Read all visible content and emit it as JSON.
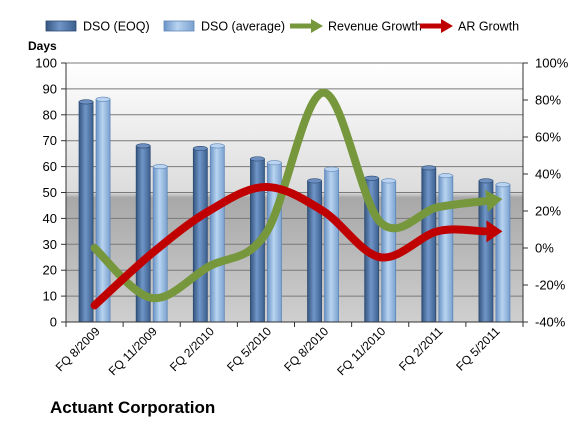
{
  "chart_data": {
    "type": "bar",
    "title": "Actuant Corporation",
    "ylabel": "Days",
    "ylim": [
      0,
      100
    ],
    "yticks": [
      "0",
      "10",
      "20",
      "30",
      "40",
      "50",
      "60",
      "70",
      "80",
      "90",
      "100"
    ],
    "y2lim": [
      -40,
      100
    ],
    "y2ticks": [
      "-40%",
      "-20%",
      "0%",
      "20%",
      "40%",
      "60%",
      "80%",
      "100%"
    ],
    "categories": [
      "FQ 8/2009",
      "FQ 11/2009",
      "FQ 2/2010",
      "FQ 5/2010",
      "FQ 8/2010",
      "FQ 11/2010",
      "FQ 2/2011",
      "FQ 5/2011"
    ],
    "legend_placement": "top",
    "series": [
      {
        "name": "DSO (EOQ)",
        "type": "bar",
        "axis": "left",
        "color": "#4f74a8",
        "values": [
          85,
          68,
          67,
          63,
          54.5,
          55.5,
          59.5,
          54.5
        ]
      },
      {
        "name": "DSO (average)",
        "type": "bar",
        "axis": "left",
        "color": "#8fb5e0",
        "values": [
          86,
          60,
          68,
          61.5,
          59,
          54.5,
          56.5,
          53
        ]
      },
      {
        "name": "Revenue Growth",
        "type": "line",
        "axis": "right",
        "color": "#77973d",
        "values": [
          0,
          -27,
          -10,
          8,
          84,
          14,
          22,
          26
        ]
      },
      {
        "name": "AR Growth",
        "type": "line",
        "axis": "right",
        "color": "#c00000",
        "values": [
          -31,
          -3,
          20,
          33,
          20,
          -5,
          9,
          9
        ]
      }
    ]
  }
}
